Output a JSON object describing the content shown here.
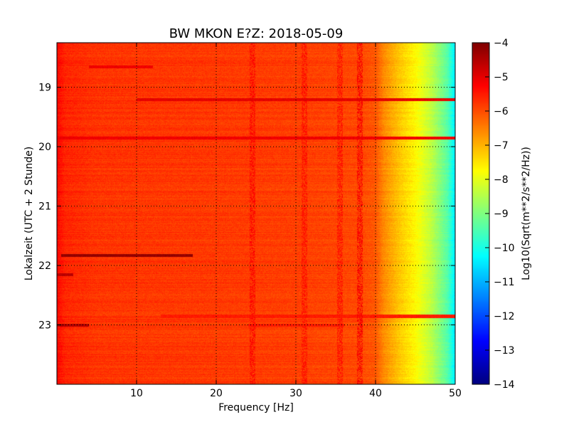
{
  "chart_data": {
    "type": "heatmap",
    "title": "BW MKON E?Z: 2018-05-09",
    "xlabel": "Frequency [Hz]",
    "ylabel": "Lokalzeit (UTC + 2 Stunde)",
    "xlim": [
      0,
      50
    ],
    "ylim": [
      24.0,
      18.25
    ],
    "y_inverted": true,
    "x_ticks": [
      10,
      20,
      30,
      40,
      50
    ],
    "x_tick_labels": [
      "10",
      "20",
      "30",
      "40",
      "50"
    ],
    "y_ticks": [
      19,
      20,
      21,
      22,
      23
    ],
    "y_tick_labels": [
      "19",
      "20",
      "21",
      "22",
      "23"
    ],
    "grid": true,
    "colormap": "jet",
    "colorbar": {
      "label": "Log10(Sqrt(m**2/s**2/Hz))",
      "range": [
        -14,
        -4
      ],
      "ticks": [
        -4,
        -5,
        -6,
        -7,
        -8,
        -9,
        -10,
        -11,
        -12,
        -13,
        -14
      ],
      "tick_labels": [
        "−4",
        "−5",
        "−6",
        "−7",
        "−8",
        "−9",
        "−10",
        "−11",
        "−12",
        "−13",
        "−14"
      ]
    },
    "spectrum_profile": [
      {
        "f": 0,
        "value": -5.3
      },
      {
        "f": 1,
        "value": -5.6
      },
      {
        "f": 5,
        "value": -5.75
      },
      {
        "f": 20,
        "value": -5.8
      },
      {
        "f": 30,
        "value": -5.85
      },
      {
        "f": 38,
        "value": -5.95
      },
      {
        "f": 40,
        "value": -6.1
      },
      {
        "f": 41,
        "value": -6.6
      },
      {
        "f": 43,
        "value": -7.2
      },
      {
        "f": 45,
        "value": -7.7
      },
      {
        "f": 47,
        "value": -8.4
      },
      {
        "f": 49,
        "value": -9.4
      },
      {
        "f": 50,
        "value": -10.5
      }
    ],
    "horizontal_bands": [
      {
        "time": 19.2,
        "f_start": 10,
        "f_end": 50,
        "value": -5.0
      },
      {
        "time": 19.85,
        "f_start": 0,
        "f_end": 50,
        "value": -5.1
      },
      {
        "time": 21.83,
        "f_start": 0.5,
        "f_end": 17,
        "value": -4.2
      },
      {
        "time": 22.15,
        "f_start": 0,
        "f_end": 2,
        "value": -4.6
      },
      {
        "time": 23.0,
        "f_start": 0,
        "f_end": 4,
        "value": -4.5
      },
      {
        "time": 18.65,
        "f_start": 4,
        "f_end": 12,
        "value": -5.1
      },
      {
        "time": 22.85,
        "f_start": 13,
        "f_end": 50,
        "value": -5.5
      },
      {
        "time": 23.0,
        "f_start": 24,
        "f_end": 36,
        "value": -5.5
      }
    ],
    "vertical_bands": [
      {
        "f": 24.5,
        "value": -5.3
      },
      {
        "f": 31,
        "value": -5.4
      },
      {
        "f": 35.5,
        "value": -5.4
      },
      {
        "f": 38,
        "value": -5.2
      }
    ]
  }
}
